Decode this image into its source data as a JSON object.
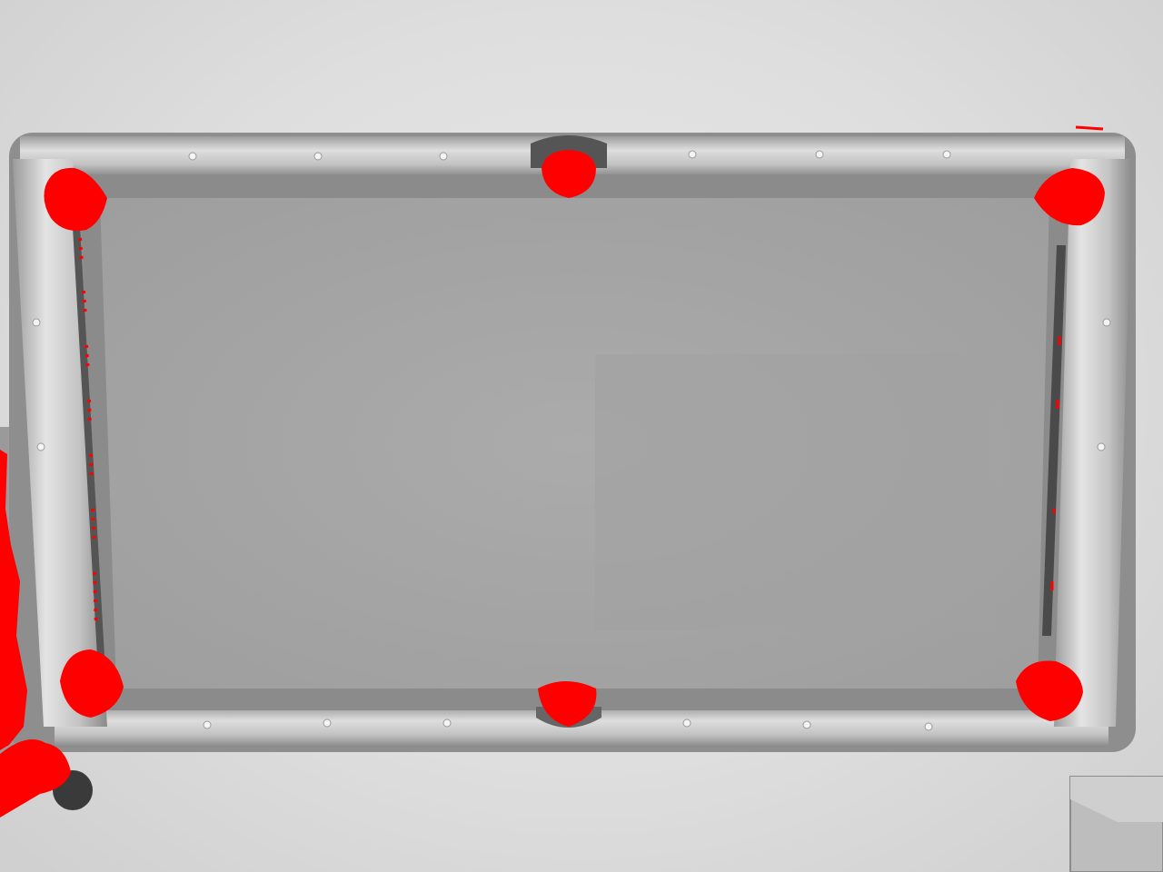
{
  "scene": {
    "subject": "pool-table-top-view",
    "colors": {
      "background": "#e2e2e2",
      "rail": "#b9b9b9",
      "rail_highlight": "#d8d8d8",
      "cushion": "#8f8f8f",
      "felt": "#a6a6a6",
      "pocket_marker": "#ff0000"
    },
    "pockets": [
      {
        "name": "top-left"
      },
      {
        "name": "top-middle"
      },
      {
        "name": "top-right"
      },
      {
        "name": "bottom-left"
      },
      {
        "name": "bottom-middle"
      },
      {
        "name": "bottom-right"
      }
    ]
  }
}
